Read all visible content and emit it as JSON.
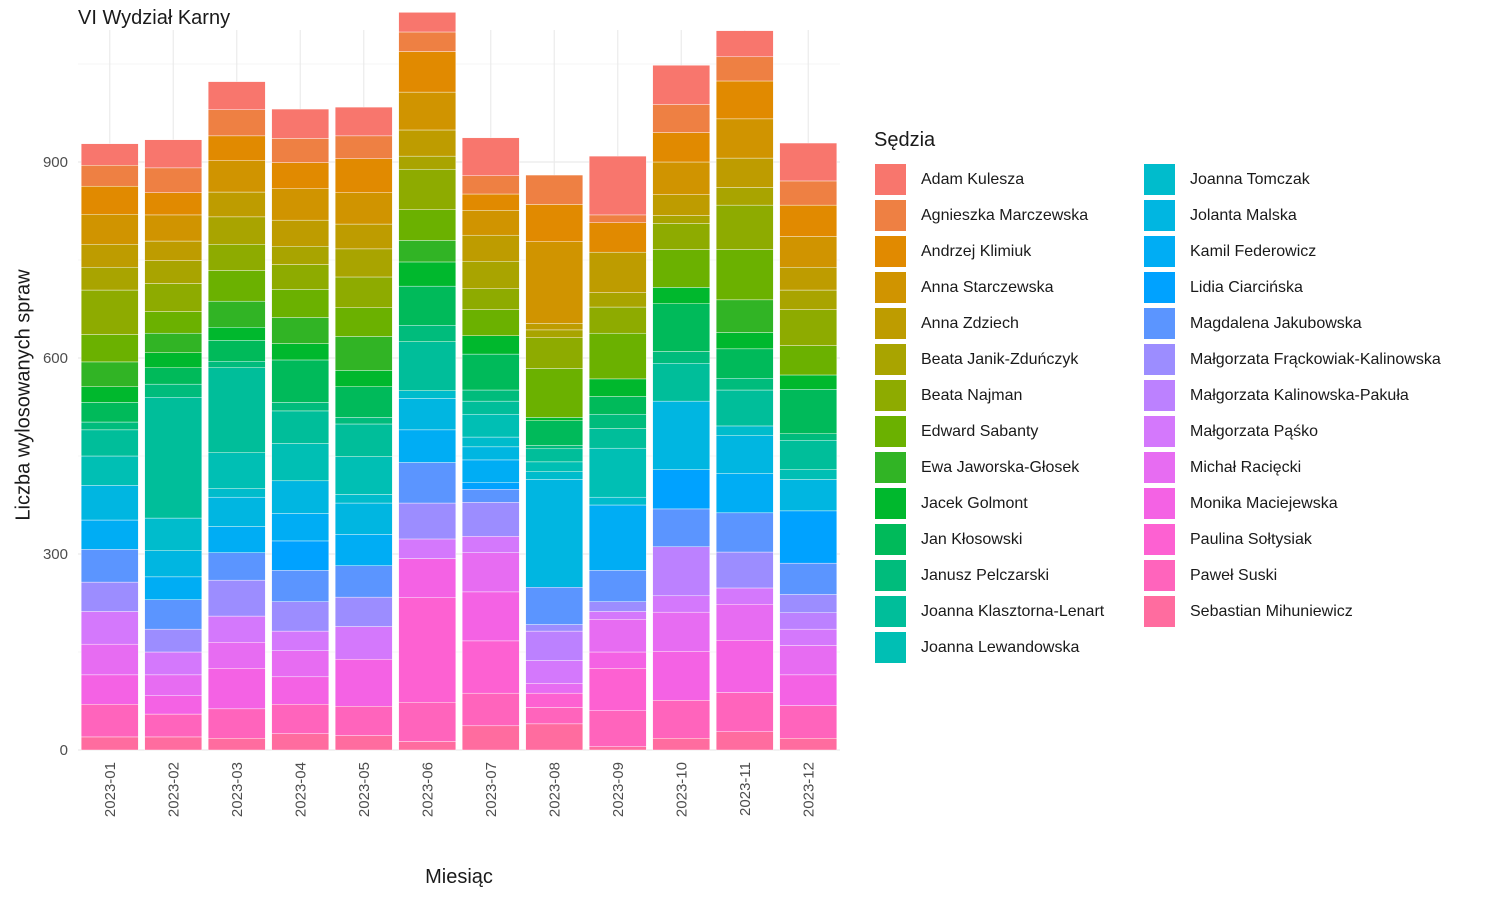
{
  "chart_data": {
    "type": "bar",
    "stacked": true,
    "title": "VI Wydział Karny",
    "xlabel": "Miesiąc",
    "ylabel": "Liczba wylosowanych spraw",
    "ylim": [
      0,
      1080
    ],
    "yticks": [
      0,
      300,
      600,
      900
    ],
    "grid": true,
    "legend_title": "Sędzia",
    "legend_position": "right",
    "categories": [
      "2023-01",
      "2023-02",
      "2023-03",
      "2023-04",
      "2023-05",
      "2023-06",
      "2023-07",
      "2023-08",
      "2023-09",
      "2023-10",
      "2023-11",
      "2023-12"
    ],
    "series": [
      {
        "name": "Adam Kulesza",
        "color": "#F8766D",
        "values": [
          33,
          43,
          43,
          45,
          44,
          30,
          58,
          0,
          90,
          60,
          40,
          58
        ]
      },
      {
        "name": "Agnieszka Marczewska",
        "color": "#EE8043",
        "values": [
          32,
          38,
          40,
          37,
          35,
          30,
          28,
          45,
          12,
          43,
          37,
          37
        ]
      },
      {
        "name": "Andrzej Klimiuk",
        "color": "#E18A00",
        "values": [
          43,
          34,
          38,
          40,
          52,
          62,
          25,
          57,
          45,
          45,
          58,
          48
        ]
      },
      {
        "name": "Anna Starczewska",
        "color": "#D09400",
        "values": [
          46,
          40,
          48,
          48,
          48,
          58,
          38,
          125,
          0,
          50,
          60,
          47
        ]
      },
      {
        "name": "Anna Zdziech",
        "color": "#BE9C00",
        "values": [
          35,
          30,
          38,
          40,
          38,
          40,
          40,
          10,
          62,
          32,
          45,
          35
        ]
      },
      {
        "name": "Beata Janik-Zduńczyk",
        "color": "#A9A400",
        "values": [
          35,
          35,
          42,
          28,
          43,
          20,
          42,
          12,
          22,
          12,
          27,
          30
        ]
      },
      {
        "name": "Beata Najman",
        "color": "#8EAB00",
        "values": [
          68,
          43,
          40,
          38,
          47,
          62,
          32,
          47,
          40,
          40,
          68,
          55
        ]
      },
      {
        "name": "Edward Sabanty",
        "color": "#6BB100",
        "values": [
          42,
          33,
          47,
          43,
          44,
          47,
          40,
          75,
          70,
          58,
          77,
          45
        ]
      },
      {
        "name": "Ewa Jaworska-Głosek",
        "color": "#31B425",
        "values": [
          38,
          30,
          40,
          40,
          52,
          33,
          0,
          0,
          0,
          0,
          50,
          0
        ]
      },
      {
        "name": "Jacek Golmont",
        "color": "#00B82D",
        "values": [
          24,
          23,
          20,
          25,
          25,
          37,
          28,
          5,
          27,
          25,
          25,
          22
        ]
      },
      {
        "name": "Jan Kłosowski",
        "color": "#00BA5A",
        "values": [
          30,
          25,
          32,
          65,
          47,
          60,
          55,
          38,
          27,
          73,
          45,
          68
        ]
      },
      {
        "name": "Janusz Pelczarski",
        "color": "#00BC7C",
        "values": [
          12,
          20,
          10,
          13,
          10,
          25,
          17,
          5,
          22,
          18,
          18,
          10
        ]
      },
      {
        "name": "Joanna Klasztorna-Lenart",
        "color": "#00BE9A",
        "values": [
          40,
          185,
          130,
          50,
          50,
          75,
          20,
          20,
          30,
          58,
          55,
          45
        ]
      },
      {
        "name": "Joanna Lewandowska",
        "color": "#00BFB4",
        "values": [
          45,
          0,
          55,
          57,
          58,
          0,
          35,
          15,
          75,
          0,
          0,
          15
        ]
      },
      {
        "name": "Joanna Tomczak",
        "color": "#00BCCC",
        "values": [
          0,
          50,
          13,
          0,
          13,
          12,
          15,
          12,
          12,
          0,
          15,
          0
        ]
      },
      {
        "name": "Jolanta Malska",
        "color": "#00B6E1",
        "values": [
          53,
          40,
          45,
          50,
          48,
          48,
          20,
          165,
          0,
          105,
          58,
          48
        ]
      },
      {
        "name": "Kamil Federowicz",
        "color": "#00ADF4",
        "values": [
          45,
          35,
          40,
          42,
          48,
          50,
          35,
          0,
          100,
          0,
          60,
          0
        ]
      },
      {
        "name": "Lidia Ciarcińska",
        "color": "#00A2FF",
        "values": [
          0,
          0,
          0,
          45,
          0,
          0,
          10,
          0,
          0,
          60,
          0,
          80
        ]
      },
      {
        "name": "Magdalena Jakubowska",
        "color": "#5B95FF",
        "values": [
          50,
          45,
          42,
          48,
          48,
          62,
          20,
          57,
          48,
          58,
          60,
          48
        ]
      },
      {
        "name": "Małgorzata Frąckowiak-Kalinowska",
        "color": "#9C8DFF",
        "values": [
          45,
          35,
          55,
          45,
          45,
          55,
          52,
          10,
          15,
          0,
          55,
          28
        ]
      },
      {
        "name": "Małgorzata Kalinowska-Pakuła",
        "color": "#BC81FF",
        "values": [
          0,
          0,
          0,
          0,
          0,
          0,
          0,
          45,
          0,
          75,
          0,
          25
        ]
      },
      {
        "name": "Małgorzata Pąśko",
        "color": "#D478FC",
        "values": [
          50,
          35,
          40,
          30,
          50,
          30,
          25,
          35,
          12,
          25,
          25,
          25
        ]
      },
      {
        "name": "Michał Racięcki",
        "color": "#E76CF2",
        "values": [
          47,
          32,
          40,
          40,
          0,
          0,
          60,
          15,
          50,
          60,
          55,
          45
        ]
      },
      {
        "name": "Monika Maciejewska",
        "color": "#F462E4",
        "values": [
          45,
          28,
          62,
          42,
          72,
          60,
          75,
          0,
          25,
          75,
          80,
          47
        ]
      },
      {
        "name": "Paulina Sołtysiak",
        "color": "#FD61D2",
        "values": [
          0,
          0,
          0,
          0,
          0,
          160,
          80,
          22,
          65,
          0,
          0,
          0
        ]
      },
      {
        "name": "Paweł Suski",
        "color": "#FF64BC",
        "values": [
          50,
          35,
          45,
          45,
          45,
          60,
          50,
          25,
          55,
          58,
          60,
          50
        ]
      },
      {
        "name": "Sebastian Mihuniewicz",
        "color": "#FF6C9F",
        "values": [
          20,
          20,
          18,
          25,
          22,
          13,
          37,
          40,
          5,
          18,
          28,
          18
        ]
      }
    ]
  }
}
